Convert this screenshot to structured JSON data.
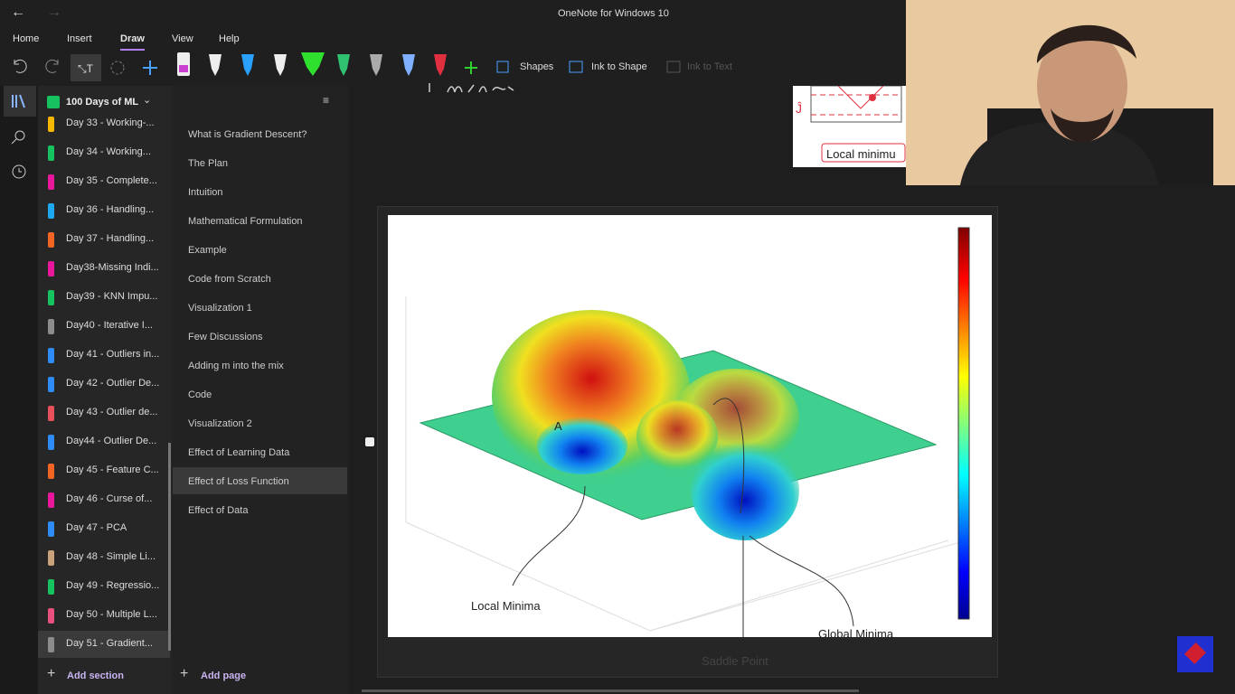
{
  "window": {
    "title": "OneNote for Windows 10"
  },
  "ribbon": {
    "tabs": [
      "Home",
      "Insert",
      "Draw",
      "View",
      "Help"
    ],
    "tools": [
      "Shapes",
      "Ink to Shape",
      "Ink to Text"
    ]
  },
  "notebook": {
    "name": "100 Days of ML",
    "sections": [
      {
        "label": "Day 33 - Working-...",
        "color": "#f5b700"
      },
      {
        "label": "Day 34 - Working...",
        "color": "#16c25f"
      },
      {
        "label": "Day 35 - Complete...",
        "color": "#e8179b"
      },
      {
        "label": "Day 36 - Handling...",
        "color": "#1ea8f0"
      },
      {
        "label": "Day 37 - Handling...",
        "color": "#f26522"
      },
      {
        "label": "Day38-Missing Indi...",
        "color": "#e8179b"
      },
      {
        "label": "Day39 - KNN Impu...",
        "color": "#16c25f"
      },
      {
        "label": "Day40 - Iterative I...",
        "color": "#8c8c8c"
      },
      {
        "label": "Day 41 - Outliers in...",
        "color": "#2f8bf5"
      },
      {
        "label": "Day 42 - Outlier De...",
        "color": "#2f8bf5"
      },
      {
        "label": "Day 43 - Outlier de...",
        "color": "#e8505b"
      },
      {
        "label": "Day44 - Outlier De...",
        "color": "#2f8bf5"
      },
      {
        "label": "Day 45 - Feature C...",
        "color": "#f26522"
      },
      {
        "label": "Day 46 - Curse of...",
        "color": "#e8179b"
      },
      {
        "label": "Day 47 - PCA",
        "color": "#2f8bf5"
      },
      {
        "label": "Day 48 - Simple Li...",
        "color": "#c8a27a"
      },
      {
        "label": "Day 49 - Regressio...",
        "color": "#16c25f"
      },
      {
        "label": "Day 50 - Multiple L...",
        "color": "#e8507e"
      },
      {
        "label": "Day 51 - Gradient...",
        "color": "#8c8c8c"
      }
    ],
    "add_section": "Add section"
  },
  "pages": {
    "items": [
      "What is Gradient Descent?",
      "The Plan",
      "Intuition",
      "Mathematical Formulation",
      "Example",
      "Code from Scratch",
      "Visualization 1",
      "Few Discussions",
      "Adding m into the mix",
      "Code",
      "Visualization 2",
      "Effect of Learning Data",
      "Effect of Loss Function",
      "Effect of Data"
    ],
    "add_page": "Add page"
  },
  "canvas": {
    "snippet_label": "Local minimu",
    "figure_labels": {
      "point": "A",
      "local": "Local Minima",
      "global": "Global Minima",
      "saddle": "Saddle Point"
    }
  }
}
